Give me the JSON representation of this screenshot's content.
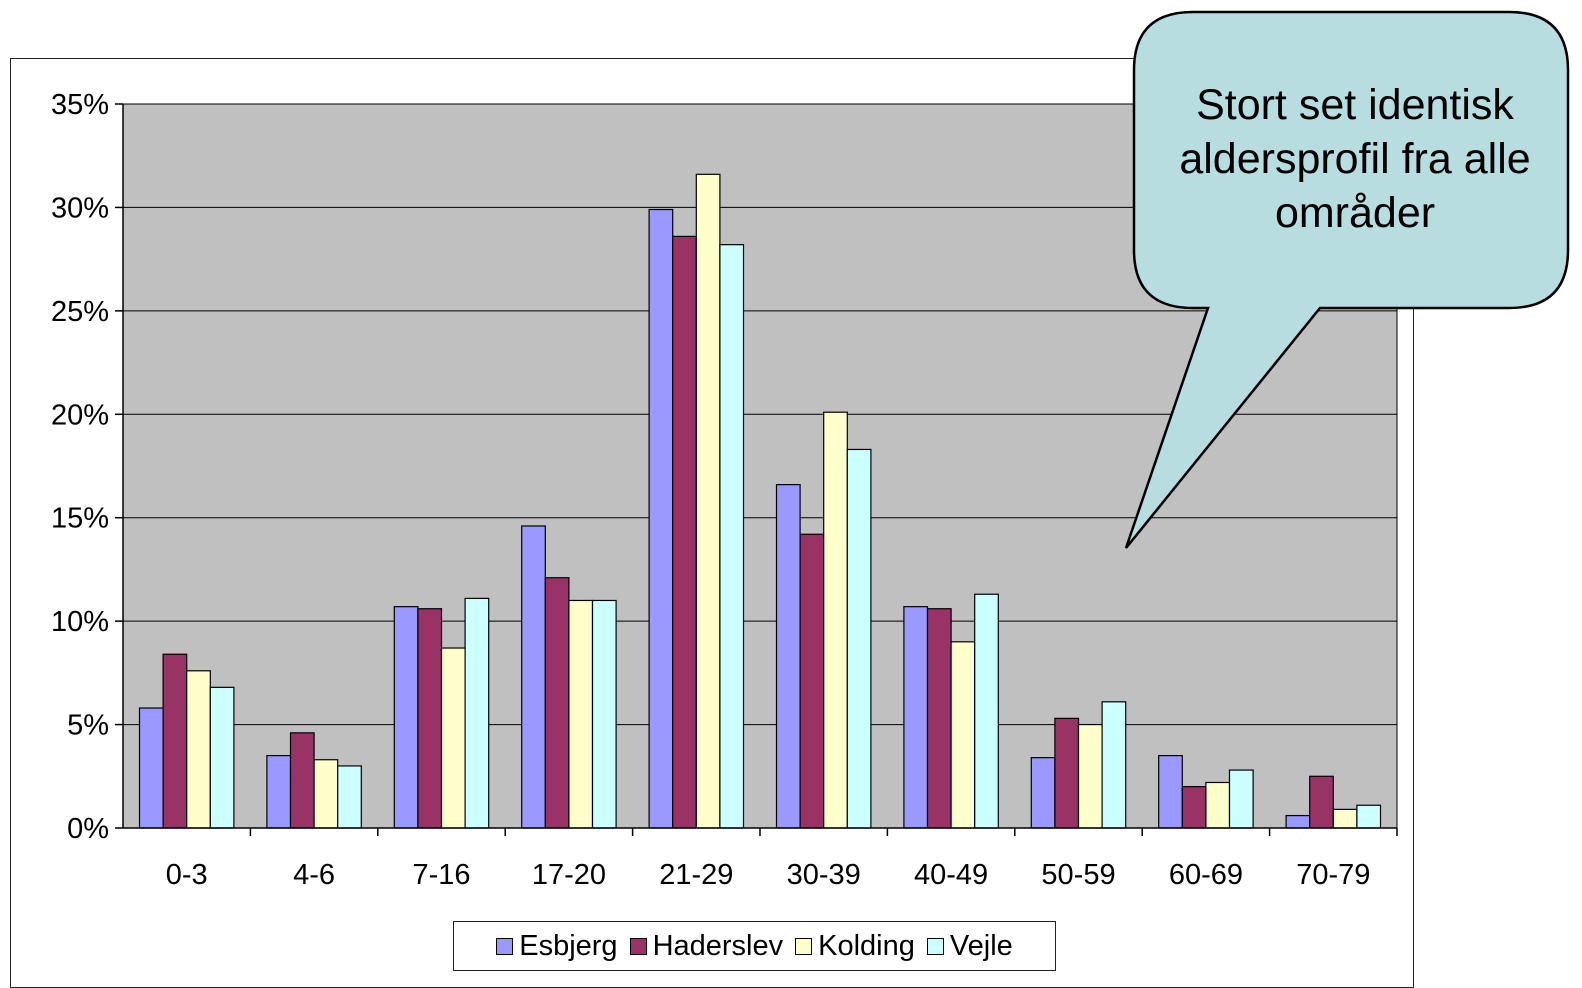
{
  "chart_data": {
    "type": "bar",
    "categories": [
      "0-3",
      "4-6",
      "7-16",
      "17-20",
      "21-29",
      "30-39",
      "40-49",
      "50-59",
      "60-69",
      "70-79"
    ],
    "series": [
      {
        "name": "Esbjerg",
        "color": "#9999ff",
        "values": [
          5.8,
          3.5,
          10.7,
          14.6,
          29.9,
          16.6,
          10.7,
          3.4,
          3.5,
          0.6
        ]
      },
      {
        "name": "Haderslev",
        "color": "#993366",
        "values": [
          8.4,
          4.6,
          10.6,
          12.1,
          28.6,
          14.2,
          10.6,
          5.3,
          2.0,
          2.5
        ]
      },
      {
        "name": "Kolding",
        "color": "#ffffcc",
        "values": [
          7.6,
          3.3,
          8.7,
          11.0,
          31.6,
          20.1,
          9.0,
          5.0,
          2.2,
          0.9
        ]
      },
      {
        "name": "Vejle",
        "color": "#ccffff",
        "values": [
          6.8,
          3.0,
          11.1,
          11.0,
          28.2,
          18.3,
          11.3,
          6.1,
          2.8,
          1.1
        ]
      }
    ],
    "y_ticks": [
      "0%",
      "5%",
      "10%",
      "15%",
      "20%",
      "25%",
      "30%",
      "35%"
    ],
    "ylim": [
      0,
      35
    ],
    "grid": true,
    "legend_position": "bottom",
    "plot_background": "#c0c0c0",
    "annotation": "Stort set identisk aldersprofil fra alle områder"
  }
}
